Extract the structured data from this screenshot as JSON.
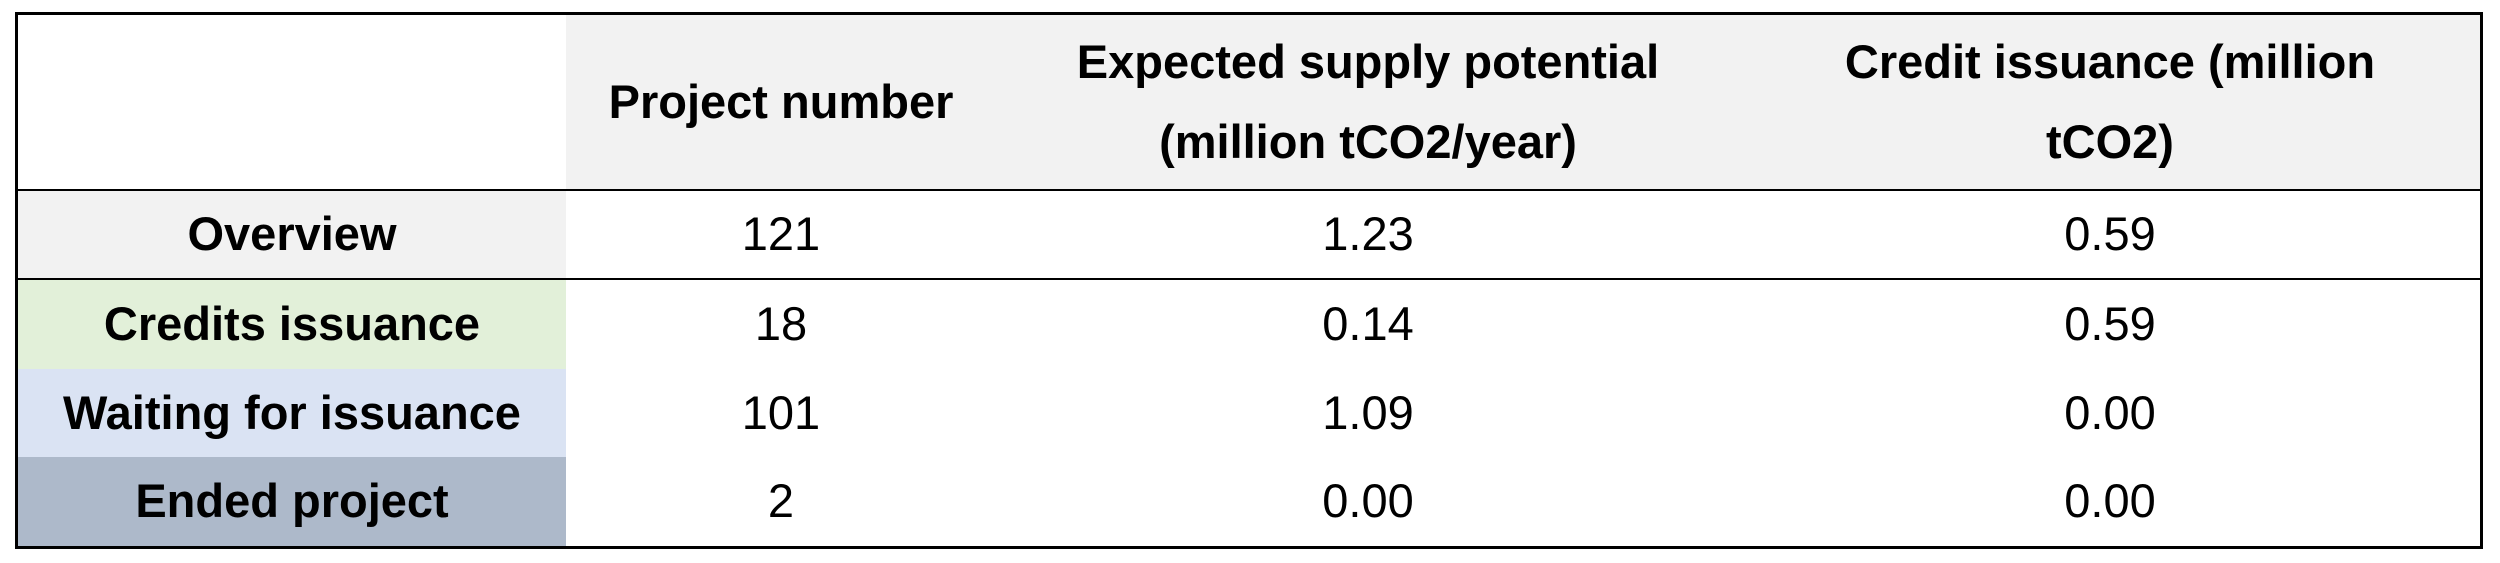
{
  "table": {
    "header": {
      "corner": "",
      "columns": [
        {
          "label": "Project number",
          "lines": [
            "Project number"
          ]
        },
        {
          "label": "Expected supply potential (million tCO2/year)",
          "lines": [
            "Expected supply potential",
            "(million tCO2/year)"
          ]
        },
        {
          "label": "Credit issuance (million tCO2)",
          "lines": [
            "Credit issuance (million",
            "tCO2)"
          ]
        }
      ],
      "bg": "#f2f2f2"
    },
    "rows": [
      {
        "label": "Overview",
        "label_bg": "#f2f2f2",
        "values": [
          "121",
          "1.23",
          "0.59"
        ]
      },
      {
        "label": "Credits issuance",
        "label_bg": "#e2f0d9",
        "values": [
          "18",
          "0.14",
          "0.59"
        ]
      },
      {
        "label": "Waiting for issuance",
        "label_bg": "#dae3f3",
        "values": [
          "101",
          "1.09",
          "0.00"
        ]
      },
      {
        "label": "Ended project",
        "label_bg": "#adb9ca",
        "values": [
          "2",
          "0.00",
          "0.00"
        ]
      }
    ],
    "colors": {
      "page_bg": "#ffffff",
      "border": "#000000",
      "text": "#000000",
      "header_bg": "#f2f2f2",
      "overview_bg": "#f2f2f2",
      "credits_issuance_bg": "#e2f0d9",
      "waiting_bg": "#dae3f3",
      "ended_bg": "#adb9ca"
    }
  },
  "chart_data": {
    "type": "table",
    "title": "",
    "columns": [
      "",
      "Project number",
      "Expected supply potential (million tCO2/year)",
      "Credit issuance (million tCO2)"
    ],
    "rows": [
      [
        "Overview",
        121,
        1.23,
        0.59
      ],
      [
        "Credits issuance",
        18,
        0.14,
        0.59
      ],
      [
        "Waiting for issuance",
        101,
        1.09,
        0.0
      ],
      [
        "Ended project",
        2,
        0.0,
        0.0
      ]
    ],
    "layout_hints": {
      "header_fill": "#f2f2f2",
      "row_label_fills": [
        "#f2f2f2",
        "#e2f0d9",
        "#dae3f3",
        "#adb9ca"
      ],
      "grid": "horizontal lines under header row and first body row only; outer black border"
    }
  }
}
